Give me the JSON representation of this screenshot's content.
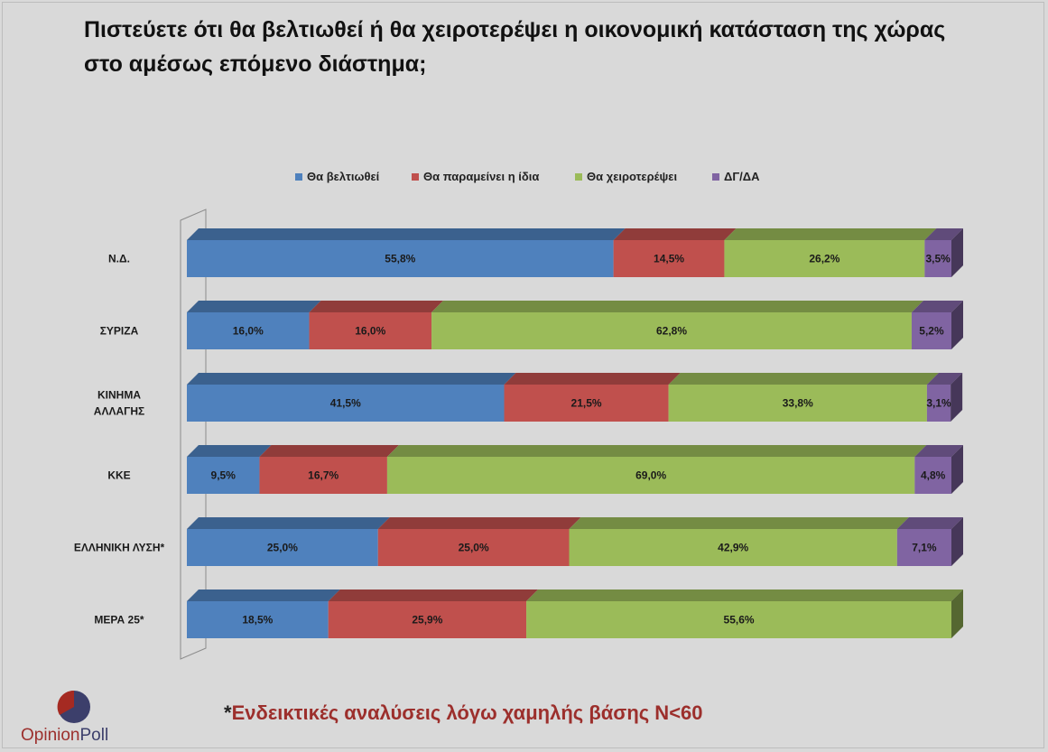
{
  "title": "Πιστεύετε ότι θα βελτιωθεί ή θα χειροτερέψει η οικονομική κατάσταση της χώρας στο αμέσως επόμενο διάστημα;",
  "footnote": {
    "star": "*",
    "text": "Ενδεικτικές αναλύσεις λόγω χαμηλής βάσης Ν<60"
  },
  "logo": {
    "word1": "Opinion",
    "word2": "Poll"
  },
  "colors": {
    "background": "#d9d9d9",
    "blue": "#4f81bd",
    "red": "#c0504d",
    "green": "#9bbb59",
    "purple": "#8064a2",
    "footnote": "#9c2f2c"
  },
  "chart_data": {
    "type": "bar",
    "orientation": "horizontal",
    "stacked": true,
    "style": "3d",
    "categories": [
      "Ν.Δ.",
      "ΣΥΡΙΖΑ",
      "ΚΙΝΗΜΑ ΑΛΛΑΓΗΣ",
      "ΚΚΕ",
      "ΕΛΛΗΝΙΚΗ ΛΥΣΗ*",
      "ΜΕΡΑ 25*"
    ],
    "category_lines": [
      [
        "Ν.Δ."
      ],
      [
        "ΣΥΡΙΖΑ"
      ],
      [
        "ΚΙΝΗΜΑ",
        "ΑΛΛΑΓΗΣ"
      ],
      [
        "ΚΚΕ"
      ],
      [
        "ΕΛΛΗΝΙΚΗ ΛΥΣΗ*"
      ],
      [
        "ΜΕΡΑ 25*"
      ]
    ],
    "series": [
      {
        "name": "Θα βελτιωθεί",
        "color": "#4f81bd",
        "values": [
          55.8,
          16.0,
          41.5,
          9.5,
          25.0,
          18.5
        ],
        "labels": [
          "55,8%",
          "16,0%",
          "41,5%",
          "9,5%",
          "25,0%",
          "18,5%"
        ]
      },
      {
        "name": "Θα παραμείνει η ίδια",
        "color": "#c0504d",
        "values": [
          14.5,
          16.0,
          21.5,
          16.7,
          25.0,
          25.9
        ],
        "labels": [
          "14,5%",
          "16,0%",
          "21,5%",
          "16,7%",
          "25,0%",
          "25,9%"
        ]
      },
      {
        "name": "Θα χειροτερέψει",
        "color": "#9bbb59",
        "values": [
          26.2,
          62.8,
          33.8,
          69.0,
          42.9,
          55.6
        ],
        "labels": [
          "26,2%",
          "62,8%",
          "33,8%",
          "69,0%",
          "42,9%",
          "55,6%"
        ]
      },
      {
        "name": "ΔΓ/ΔΑ",
        "color": "#8064a2",
        "values": [
          3.5,
          5.2,
          3.1,
          4.8,
          7.1,
          0
        ],
        "labels": [
          "3,5%",
          "5,2%",
          "3,1%",
          "4,8%",
          "7,1%",
          ""
        ]
      }
    ],
    "xlim": [
      0,
      100
    ],
    "legend_position": "top-center",
    "grid": false,
    "data_labels": true
  }
}
